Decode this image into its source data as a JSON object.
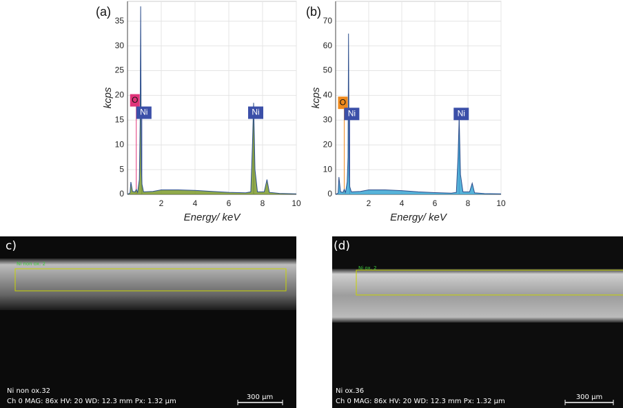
{
  "chart_data": [
    {
      "type": "area",
      "title": "(a)",
      "xlabel": "Energy/ keV",
      "ylabel": "kcps",
      "x": [
        0,
        0.15,
        0.2,
        0.3,
        0.45,
        0.52,
        0.6,
        0.7,
        0.75,
        0.78,
        0.82,
        0.86,
        0.95,
        1.5,
        2,
        3,
        4,
        5,
        6,
        7,
        7.3,
        7.4,
        7.47,
        7.55,
        7.7,
        8.1,
        8.26,
        8.4,
        9,
        10
      ],
      "values": [
        0,
        0.3,
        2.5,
        0.6,
        0.5,
        1,
        0.4,
        3,
        15,
        38,
        5,
        2,
        0.5,
        0.6,
        0.9,
        0.9,
        0.8,
        0.6,
        0.4,
        0.3,
        0.5,
        10,
        18.5,
        5,
        0.5,
        0.5,
        3,
        0.4,
        0.2,
        0.1
      ],
      "color": "#7c9a2c",
      "line_color": "#2b4d8c",
      "xlim": [
        0,
        10
      ],
      "ylim": [
        0,
        39
      ],
      "xticks": [
        2,
        4,
        6,
        8,
        10
      ],
      "yticks": [
        0,
        5,
        10,
        15,
        20,
        25,
        30,
        35
      ],
      "grid": true,
      "annotations": [
        {
          "label": "O",
          "x": 0.52,
          "y": 19,
          "color": "#e0347a"
        },
        {
          "label": "Ni",
          "x": 0.85,
          "y": 16.5,
          "color": "#3b4fa8"
        },
        {
          "label": "Ni",
          "x": 7.47,
          "y": 16.5,
          "color": "#3b4fa8"
        }
      ]
    },
    {
      "type": "area",
      "title": "(b)",
      "xlabel": "Energy/ keV",
      "ylabel": "kcps",
      "x": [
        0,
        0.15,
        0.2,
        0.3,
        0.45,
        0.52,
        0.6,
        0.7,
        0.75,
        0.78,
        0.82,
        0.86,
        0.95,
        1.5,
        2,
        3,
        4,
        5,
        6,
        7,
        7.3,
        7.4,
        7.47,
        7.55,
        7.7,
        8.1,
        8.26,
        8.4,
        9,
        10
      ],
      "values": [
        0,
        0.5,
        7,
        1,
        0.8,
        2,
        0.8,
        5,
        15,
        65,
        8,
        3,
        1,
        1.2,
        1.8,
        1.8,
        1.5,
        1,
        0.7,
        0.5,
        0.8,
        15,
        31,
        8,
        1,
        1,
        4.5,
        0.6,
        0.3,
        0.2
      ],
      "color": "#3aa6d2",
      "line_color": "#2b4d8c",
      "xlim": [
        0,
        10
      ],
      "ylim": [
        0,
        78
      ],
      "xticks": [
        2,
        4,
        6,
        8,
        10
      ],
      "yticks": [
        0,
        10,
        20,
        30,
        40,
        50,
        60,
        70
      ],
      "grid": true,
      "annotations": [
        {
          "label": "O",
          "x": 0.52,
          "y": 37,
          "color": "#ee8a1e"
        },
        {
          "label": "Ni",
          "x": 0.85,
          "y": 32.5,
          "color": "#3b4fa8"
        },
        {
          "label": "Ni",
          "x": 7.47,
          "y": 32.5,
          "color": "#3b4fa8"
        }
      ]
    }
  ],
  "images": [
    {
      "panel": "c)",
      "region": "Ni non ox. 2",
      "name": "Ni non ox.32",
      "info": "Ch 0  MAG: 86x  HV: 20  WD: 12.3 mm  Px: 1.32 µm",
      "scale": "300 µm"
    },
    {
      "panel": "(d)",
      "region": "Ni ox. 2",
      "name": "Ni ox.36",
      "info": "Ch 0  MAG: 86x  HV: 20  WD: 12.3 mm  Px: 1.32 µm",
      "scale": "300 µm"
    }
  ]
}
